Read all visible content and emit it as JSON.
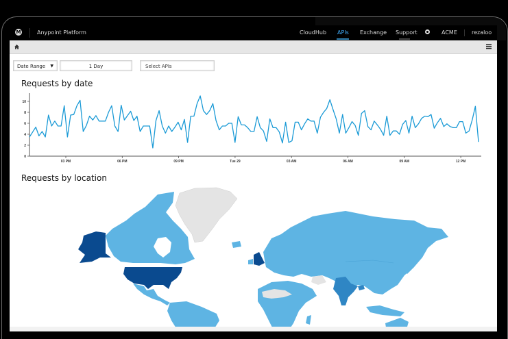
{
  "topbar": {
    "logo": "M",
    "app_title": "Anypoint Platform",
    "nav": [
      {
        "label": "CloudHub",
        "active": false
      },
      {
        "label": "APIs",
        "active": true
      },
      {
        "label": "Exchange",
        "active": false
      },
      {
        "label": "Support",
        "active": false
      }
    ],
    "settings_icon": "gear-icon",
    "org": "ACME",
    "user": "rezaloo"
  },
  "subbar": {
    "home_icon": "home-icon",
    "menu_icon": "hamburger-menu-icon"
  },
  "filters": {
    "date_range_label": "Date Range",
    "date_range_value": "1 Day",
    "apis_placeholder": "Select APIs"
  },
  "sections": {
    "requests_by_date": "Requests by date",
    "requests_by_location": "Requests by location"
  },
  "colors": {
    "line": "#1a9ad6",
    "map_high": "#0a4a8f",
    "map_mid": "#2f86c4",
    "map_low": "#5eb4e3",
    "map_none": "#e4e4e4",
    "accent": "#3fa9f5"
  },
  "chart_data": {
    "type": "line",
    "title": "Requests by date",
    "xlabel": "",
    "ylabel": "",
    "ylim": [
      0,
      11
    ],
    "yticks": [
      0,
      2,
      4,
      6,
      8,
      10
    ],
    "xtick_labels": [
      "03 PM",
      "06 PM",
      "09 PM",
      "Tue 29",
      "03 AM",
      "06 AM",
      "09 AM",
      "12 PM"
    ],
    "grid": false,
    "legend": "none",
    "series": [
      {
        "name": "Requests",
        "values": [
          3.5,
          4.4,
          5.3,
          3.7,
          4.5,
          3.5,
          7.5,
          5.5,
          6.4,
          5.5,
          5.5,
          9.2,
          3.5,
          7.5,
          7.6,
          9.2,
          10.2,
          4.5,
          5.6,
          7.3,
          6.6,
          7.4,
          6.4,
          6.4,
          6.4,
          8.0,
          9.2,
          5.5,
          4.5,
          9.3,
          6.6,
          7.4,
          8.2,
          6.5,
          7.3,
          4.5,
          5.5,
          5.5,
          5.5,
          1.5,
          6.5,
          8.3,
          5.5,
          4.2,
          5.5,
          4.5,
          5.3,
          6.2,
          4.8,
          6.7,
          2.5,
          7.3,
          7.3,
          9.6,
          11.0,
          8.3,
          7.6,
          8.3,
          9.6,
          6.5,
          4.8,
          5.5,
          5.5,
          6.0,
          6.0,
          2.5,
          7.2,
          5.7,
          5.7,
          5.2,
          4.5,
          4.5,
          7.2,
          5.2,
          4.6,
          2.7,
          6.8,
          5.2,
          5.2,
          4.4,
          2.4,
          6.2,
          2.5,
          2.8,
          6.2,
          6.2,
          4.8,
          5.9,
          6.8,
          6.4,
          6.4,
          4.2,
          7.1,
          8.0,
          8.7,
          10.3,
          8.5,
          6.8,
          4.2,
          7.6,
          4.2,
          5.2,
          6.3,
          5.6,
          3.8,
          7.8,
          8.3,
          5.4,
          4.8,
          6.4,
          5.7,
          4.9,
          3.8,
          7.3,
          3.8,
          4.6,
          4.6,
          4.0,
          5.8,
          6.5,
          4.2,
          7.3,
          5.2,
          5.9,
          6.9,
          7.3,
          7.2,
          7.6,
          5.1,
          6.1,
          6.9,
          5.4,
          5.9,
          5.4,
          5.2,
          5.2,
          6.3,
          6.3,
          4.2,
          4.6,
          6.6,
          9.1,
          2.6
        ]
      }
    ]
  },
  "map_data": {
    "type": "choropleth",
    "title": "Requests by location",
    "highest": [
      "United States",
      "Alaska (US)",
      "United Kingdom"
    ],
    "high": [
      "India",
      "Bangladesh"
    ],
    "medium": [
      "Canada",
      "Mexico",
      "Europe",
      "Russia",
      "China",
      "South America",
      "Africa",
      "Australia",
      "Japan",
      "Southeast Asia"
    ],
    "no_data": [
      "Greenland",
      "Sahara region",
      "Iran",
      "Iceland (partial)"
    ]
  }
}
